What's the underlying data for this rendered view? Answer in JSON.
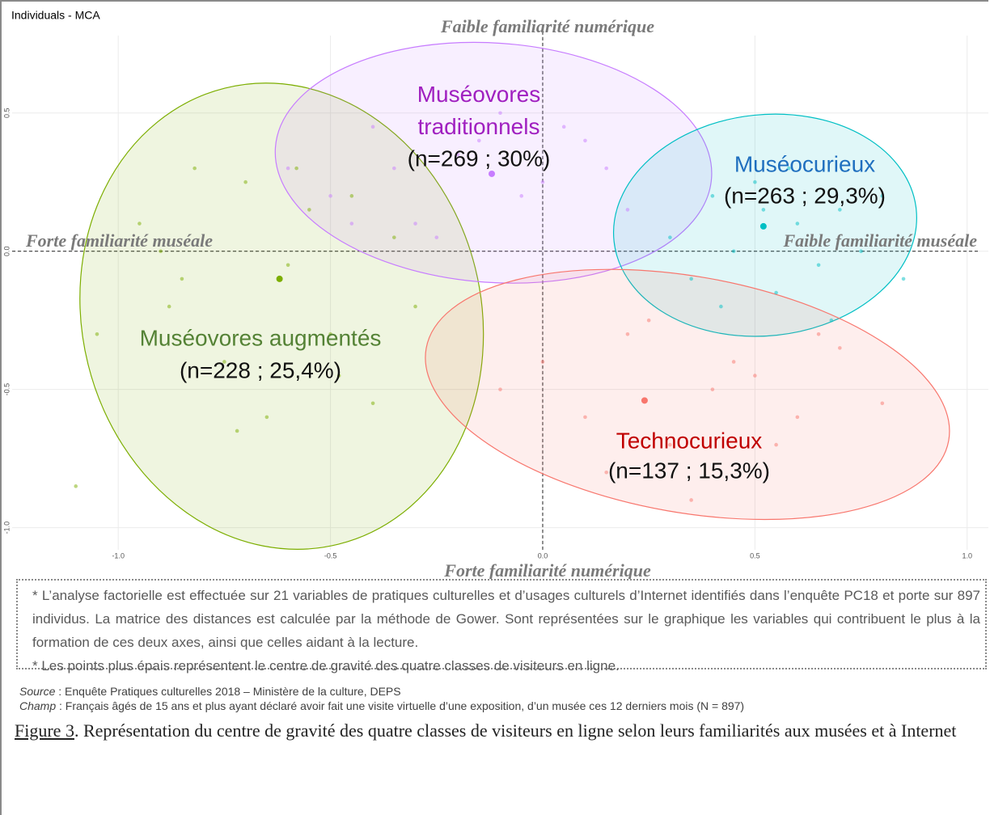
{
  "chart_data": {
    "type": "scatter",
    "title": "Individuals - MCA",
    "annotations": {
      "top": "Faible familiarité numérique",
      "bottom": "Forte familiarité numérique",
      "left": "Forte familiarité muséale",
      "right": "Faible familiarité muséale"
    },
    "xlim": [
      -1.25,
      1.05
    ],
    "ylim": [
      -1.08,
      0.78
    ],
    "xticks": [
      {
        "value": -1.0,
        "label": "-1.0"
      },
      -0.5,
      {
        "value": 0,
        "label": "0.0"
      },
      0.5,
      {
        "value": 1.0,
        "label": "1.0"
      }
    ],
    "yticks": [
      {
        "value": -1.0,
        "label": "-1.0"
      },
      -0.5,
      {
        "value": 0,
        "label": "0.0"
      },
      0.5
    ],
    "grid": true,
    "series": [
      {
        "name": "Muséovores augmentés",
        "label": "(n=228 ; 25,4%)",
        "color": "#7cae00",
        "text_color": "#548235",
        "center_x": -0.62,
        "center_y": -0.1,
        "ellipse": {
          "cx": -0.615,
          "cy": -0.235,
          "rx": 0.47,
          "ry": 0.85,
          "angle": -14
        },
        "x": [
          -1.05,
          -0.95,
          -0.88,
          -0.82,
          -0.75,
          -0.7,
          -0.65,
          -0.6,
          -0.55,
          -0.5,
          -0.45,
          -0.4,
          -0.35,
          -0.3,
          -0.85,
          -0.72,
          -0.58,
          -0.48,
          -1.1,
          -0.9
        ],
        "y": [
          -0.3,
          0.1,
          -0.2,
          0.3,
          -0.4,
          0.25,
          -0.6,
          -0.05,
          0.15,
          -0.3,
          0.2,
          -0.55,
          0.05,
          -0.2,
          -0.1,
          -0.65,
          0.3,
          -0.45,
          -0.85,
          0.0
        ]
      },
      {
        "name": "Muséovores traditionnels",
        "label": "(n=269 ; 30%)",
        "color": "#c77cff",
        "text_color": "#a020c0",
        "center_x": -0.12,
        "center_y": 0.28,
        "ellipse": {
          "cx": -0.116,
          "cy": 0.32,
          "rx": 0.515,
          "ry": 0.433,
          "angle": 4
        },
        "x": [
          -0.6,
          -0.5,
          -0.4,
          -0.3,
          -0.2,
          -0.1,
          0,
          0.1,
          0.2,
          -0.35,
          -0.25,
          -0.05,
          0.05,
          -0.45,
          -0.15,
          0.15
        ],
        "y": [
          0.3,
          0.2,
          0.45,
          0.1,
          0.35,
          0.5,
          0.25,
          0.4,
          0.15,
          0.3,
          0.05,
          0.2,
          0.45,
          0.1,
          0.4,
          0.3
        ]
      },
      {
        "name": "Muséocurieux",
        "label": "(n=263 ; 29,3%)",
        "color": "#00bfc4",
        "text_color": "#1f6fbf",
        "center_x": 0.52,
        "center_y": 0.09,
        "ellipse": {
          "cx": 0.524,
          "cy": 0.094,
          "rx": 0.358,
          "ry": 0.4,
          "angle": -6
        },
        "x": [
          0.3,
          0.35,
          0.4,
          0.45,
          0.5,
          0.55,
          0.6,
          0.65,
          0.7,
          0.75,
          0.8,
          0.85,
          0.42,
          0.58,
          0.68,
          0.52
        ],
        "y": [
          0.05,
          -0.1,
          0.2,
          0.0,
          0.25,
          -0.15,
          0.1,
          -0.05,
          0.15,
          0.0,
          0.2,
          -0.1,
          -0.2,
          0.3,
          -0.25,
          0.15
        ]
      },
      {
        "name": "Technocurieux",
        "label": "(n=137 ; 15,3%)",
        "color": "#f8766d",
        "text_color": "#c00000",
        "center_x": 0.24,
        "center_y": -0.54,
        "ellipse": {
          "cx": 0.341,
          "cy": -0.518,
          "rx": 0.625,
          "ry": 0.427,
          "angle": 10
        },
        "x": [
          0.0,
          0.1,
          0.2,
          0.3,
          0.4,
          0.5,
          0.6,
          0.7,
          0.8,
          -0.1,
          0.15,
          0.35,
          0.55,
          0.25,
          0.45,
          0.65
        ],
        "y": [
          -0.4,
          -0.6,
          -0.3,
          -0.7,
          -0.5,
          -0.45,
          -0.6,
          -0.35,
          -0.55,
          -0.5,
          -0.8,
          -0.9,
          -0.7,
          -0.25,
          -0.4,
          -0.3
        ]
      }
    ]
  },
  "notes": [
    "* L’analyse factorielle est effectuée sur 21 variables de pratiques culturelles et d’usages culturels d’Internet identifiés dans l’enquête PC18 et porte sur 897 individus. La matrice des distances est calculée par la méthode de Gower. Sont représentées sur le graphique les variables qui contribuent le plus à la formation de ces deux axes, ainsi que celles aidant à la lecture.",
    "* Les points plus épais représentent le centre de gravité des quatre classes de visiteurs en ligne."
  ],
  "source": {
    "label": "Source",
    "text": " : Enquête Pratiques culturelles 2018 – Ministère de la culture, DEPS"
  },
  "champ": {
    "label": "Champ",
    "text": " : Français âgés de 15 ans et plus ayant déclaré avoir fait une visite virtuelle d’une exposition, d’un musée ces 12 derniers mois (N = 897)"
  },
  "caption": {
    "label": "Figure 3",
    "text": ". Représentation du centre de gravité des quatre classes de visiteurs en ligne selon leurs familiarités aux musées et à Internet"
  }
}
